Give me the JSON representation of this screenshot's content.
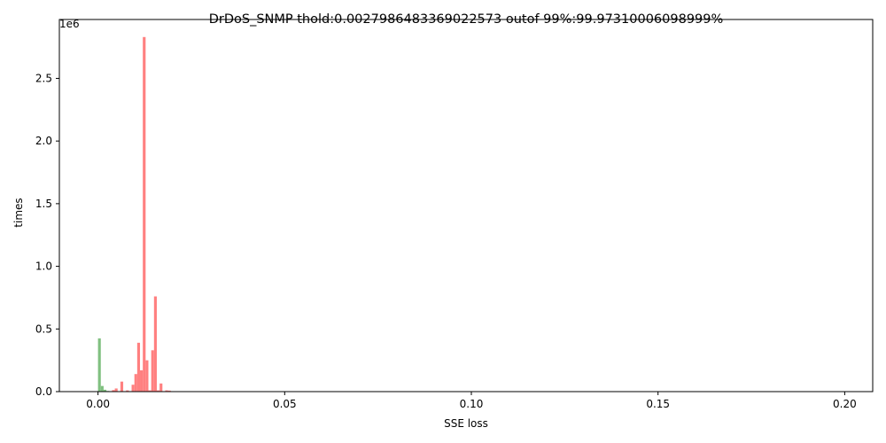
{
  "chart_data": {
    "type": "bar",
    "title": "DrDoS_SNMP thold:0.0027986483369022573 outof 99%:99.97310006098999%",
    "xlabel": "SSE loss",
    "ylabel": "times",
    "y_offset_label": "1e6",
    "xlim": [
      -0.01035,
      0.2075
    ],
    "ylim": [
      0,
      2.97
    ],
    "y_unit_multiplier": 1000000,
    "x_ticks": [
      0.0,
      0.05,
      0.1,
      0.15,
      0.2
    ],
    "x_tick_labels": [
      "0.00",
      "0.05",
      "0.10",
      "0.15",
      "0.20"
    ],
    "y_ticks": [
      0.0,
      0.5,
      1.0,
      1.5,
      2.0,
      2.5
    ],
    "y_tick_labels": [
      "0.0",
      "0.5",
      "1.0",
      "1.5",
      "2.0",
      "2.5"
    ],
    "bin_width": 0.00075,
    "grid": false,
    "series": [
      {
        "color": "#80c080",
        "bins": [
          {
            "x": 0.0,
            "value": 0.425
          },
          {
            "x": 0.00075,
            "value": 0.045
          },
          {
            "x": 0.0015,
            "value": 0.015
          },
          {
            "x": 0.00225,
            "value": 0.005
          }
        ]
      },
      {
        "color": "#ff8080",
        "bins": [
          {
            "x": 0.00375,
            "value": 0.012
          },
          {
            "x": 0.0045,
            "value": 0.025
          },
          {
            "x": 0.006,
            "value": 0.08
          },
          {
            "x": 0.0075,
            "value": 0.01
          },
          {
            "x": 0.009,
            "value": 0.055
          },
          {
            "x": 0.00975,
            "value": 0.14
          },
          {
            "x": 0.0105,
            "value": 0.39
          },
          {
            "x": 0.01125,
            "value": 0.17
          },
          {
            "x": 0.012,
            "value": 2.83
          },
          {
            "x": 0.01275,
            "value": 0.25
          },
          {
            "x": 0.0135,
            "value": 0.01
          },
          {
            "x": 0.01425,
            "value": 0.33
          },
          {
            "x": 0.015,
            "value": 0.76
          },
          {
            "x": 0.01575,
            "value": 0.01
          },
          {
            "x": 0.0165,
            "value": 0.065
          },
          {
            "x": 0.018,
            "value": 0.01
          },
          {
            "x": 0.01875,
            "value": 0.008
          }
        ]
      }
    ]
  }
}
